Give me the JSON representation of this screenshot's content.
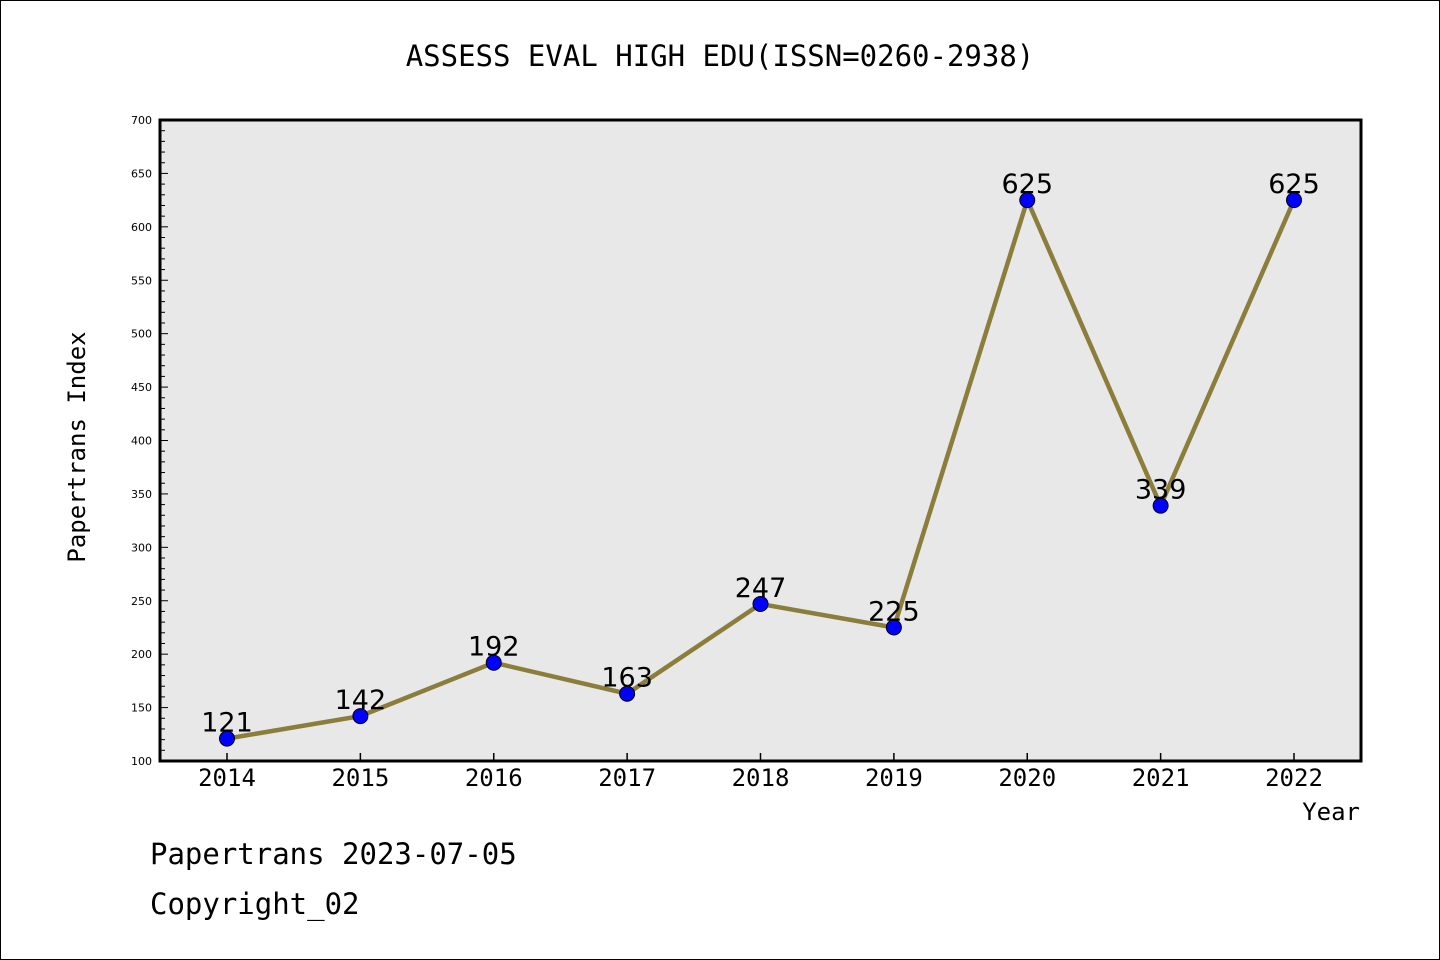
{
  "chart_data": {
    "type": "line",
    "title": "ASSESS EVAL HIGH EDU(ISSN=0260-2938)",
    "xlabel": "Year",
    "ylabel": "Papertrans Index",
    "categories": [
      "2014",
      "2015",
      "2016",
      "2017",
      "2018",
      "2019",
      "2020",
      "2021",
      "2022"
    ],
    "series": [
      {
        "values": [
          121,
          142,
          192,
          163,
          247,
          225,
          625,
          339,
          625
        ],
        "data_labels": [
          "121",
          "142",
          "192",
          "163",
          "247",
          "225",
          "625",
          "339",
          "625"
        ]
      }
    ],
    "ylim": [
      100,
      700
    ],
    "yticks": [
      100,
      150,
      200,
      250,
      300,
      350,
      400,
      450,
      500,
      550,
      600,
      650,
      700
    ],
    "ytick_labels": [
      "100",
      "150",
      "200",
      "250",
      "300",
      "350",
      "400",
      "450",
      "500",
      "550",
      "600",
      "650",
      "700"
    ],
    "grid": false,
    "colors": {
      "line": "#8b7d3a",
      "marker": "#0000ff",
      "plot_background": "#e8e8e8"
    }
  },
  "footer": {
    "line1": "Papertrans 2023-07-05",
    "line2": "Copyright_02"
  }
}
